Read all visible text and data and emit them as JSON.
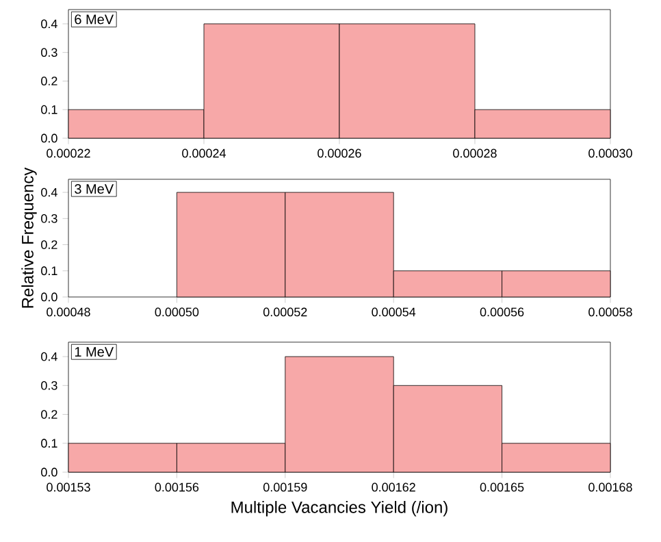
{
  "chart_data": [
    {
      "type": "histogram",
      "bins": [
        0.00022,
        0.00024,
        0.00026,
        0.00028,
        0.0003
      ],
      "values": [
        0.1,
        0.4,
        0.4,
        0.1
      ],
      "color": "#f7a8a8",
      "xlim": [
        0.00022,
        0.0003
      ],
      "xticks": [
        {
          "value": 0.00022,
          "label": "0.00022"
        },
        {
          "value": 0.00024,
          "label": "0.00024"
        },
        {
          "value": 0.00026,
          "label": "0.00026"
        },
        {
          "value": 0.00028,
          "label": "0.00028"
        },
        {
          "value": 0.0003,
          "label": "0.00030"
        }
      ],
      "ylim": [
        0,
        0.45
      ],
      "yticks": [
        {
          "value": 0,
          "label": "0.0"
        },
        {
          "value": 0.1,
          "label": "0.1"
        },
        {
          "value": 0.2,
          "label": "0.2"
        },
        {
          "value": 0.3,
          "label": "0.3"
        },
        {
          "value": 0.4,
          "label": "0.4"
        }
      ],
      "annotations": [
        "6 MeV"
      ]
    },
    {
      "type": "histogram",
      "bins": [
        0.0005,
        0.00052,
        0.00054,
        0.00056,
        0.00058
      ],
      "values": [
        0.4,
        0.4,
        0.1,
        0.1
      ],
      "color": "#f7a8a8",
      "xlim": [
        0.00048,
        0.00058
      ],
      "xticks": [
        {
          "value": 0.00048,
          "label": "0.00048"
        },
        {
          "value": 0.0005,
          "label": "0.00050"
        },
        {
          "value": 0.00052,
          "label": "0.00052"
        },
        {
          "value": 0.00054,
          "label": "0.00054"
        },
        {
          "value": 0.00056,
          "label": "0.00056"
        },
        {
          "value": 0.00058,
          "label": "0.00058"
        }
      ],
      "ylim": [
        0,
        0.45
      ],
      "yticks": [
        {
          "value": 0,
          "label": "0.0"
        },
        {
          "value": 0.1,
          "label": "0.1"
        },
        {
          "value": 0.2,
          "label": "0.2"
        },
        {
          "value": 0.3,
          "label": "0.3"
        },
        {
          "value": 0.4,
          "label": "0.4"
        }
      ],
      "ylabel": "Relative Frequency",
      "annotations": [
        "3 MeV"
      ]
    },
    {
      "type": "histogram",
      "bins": [
        0.00153,
        0.00156,
        0.00159,
        0.00162,
        0.00165,
        0.00168
      ],
      "values": [
        0.1,
        0.1,
        0.4,
        0.3,
        0.1
      ],
      "color": "#f7a8a8",
      "xlim": [
        0.00153,
        0.00168
      ],
      "xticks": [
        {
          "value": 0.00153,
          "label": "0.00153"
        },
        {
          "value": 0.00156,
          "label": "0.00156"
        },
        {
          "value": 0.00159,
          "label": "0.00159"
        },
        {
          "value": 0.00162,
          "label": "0.00162"
        },
        {
          "value": 0.00165,
          "label": "0.00165"
        },
        {
          "value": 0.00168,
          "label": "0.00168"
        }
      ],
      "ylim": [
        0,
        0.45
      ],
      "yticks": [
        {
          "value": 0,
          "label": "0.0"
        },
        {
          "value": 0.1,
          "label": "0.1"
        },
        {
          "value": 0.2,
          "label": "0.2"
        },
        {
          "value": 0.3,
          "label": "0.3"
        },
        {
          "value": 0.4,
          "label": "0.4"
        }
      ],
      "xlabel": "Multiple Vacancies Yield (/ion)",
      "annotations": [
        "1 MeV"
      ]
    }
  ]
}
